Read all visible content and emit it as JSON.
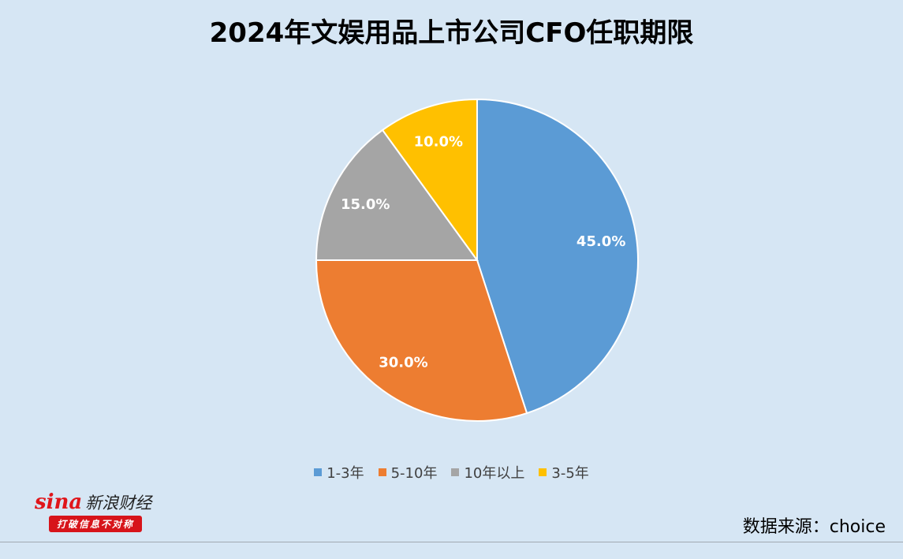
{
  "chart_data": {
    "type": "pie",
    "title": "2024年文娱用品上市公司CFO任职期限",
    "categories": [
      "1-3年",
      "5-10年",
      "10年以上",
      "3-5年"
    ],
    "values": [
      45.0,
      30.0,
      15.0,
      10.0
    ],
    "labels": [
      "45.0%",
      "30.0%",
      "15.0%",
      "10.0%"
    ],
    "colors": [
      "#5b9bd5",
      "#ed7d31",
      "#a5a5a5",
      "#ffc000"
    ],
    "legend": "bottom"
  },
  "logo": {
    "brand": "sina",
    "name": "新浪财经",
    "slogan": "打破信息不对称"
  },
  "source": "数据来源：choice"
}
